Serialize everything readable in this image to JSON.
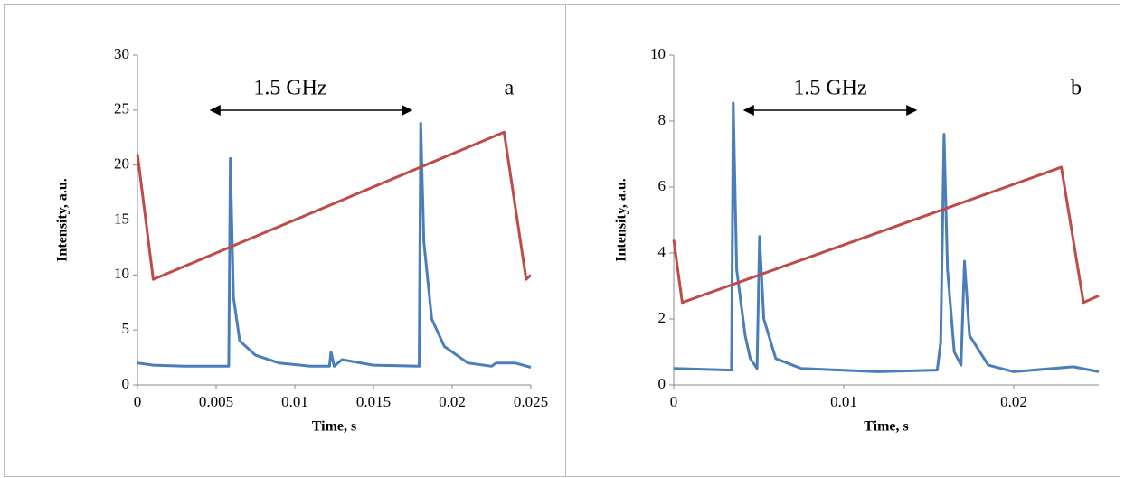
{
  "chart_data": [
    {
      "type": "line",
      "x_label": "Time, s",
      "y_label": "Intensity, a.u.",
      "xlim": [
        0,
        0.025
      ],
      "xticks": [
        0,
        0.005,
        0.01,
        0.015,
        0.02,
        0.025
      ],
      "ylim": [
        0,
        30
      ],
      "yticks": [
        0,
        5,
        10,
        15,
        20,
        25,
        30
      ],
      "annotations": [
        "1.5 GHz",
        "a"
      ],
      "series": [
        {
          "color": "#4a7ebb",
          "x": [
            0,
            0.001,
            0.003,
            0.0058,
            0.0059,
            0.0061,
            0.0065,
            0.0075,
            0.009,
            0.011,
            0.0122,
            0.0123,
            0.0125,
            0.013,
            0.015,
            0.0179,
            0.018,
            0.0182,
            0.0187,
            0.0195,
            0.021,
            0.0225,
            0.0228,
            0.024,
            0.025
          ],
          "values": [
            2,
            1.8,
            1.7,
            1.7,
            20.6,
            8,
            4,
            2.7,
            2,
            1.7,
            1.7,
            3,
            1.7,
            2.3,
            1.8,
            1.7,
            23.8,
            13,
            6,
            3.5,
            2,
            1.7,
            2,
            2,
            1.6
          ]
        },
        {
          "color": "#be4b48",
          "x": [
            0,
            0.001,
            0.0233,
            0.0247,
            0.025
          ],
          "values": [
            21,
            9.6,
            23,
            9.6,
            10
          ]
        }
      ]
    },
    {
      "type": "line",
      "x_label": "Time, s",
      "y_label": "Intensity, a.u.",
      "xlim": [
        0,
        0.025
      ],
      "xticks": [
        0,
        0.01,
        0.02
      ],
      "ylim": [
        0,
        10
      ],
      "yticks": [
        0,
        2,
        4,
        6,
        8,
        10
      ],
      "annotations": [
        "1.5 GHz",
        "b"
      ],
      "series": [
        {
          "color": "#4a7ebb",
          "x": [
            0,
            0.0034,
            0.0035,
            0.0037,
            0.0042,
            0.0045,
            0.0049,
            0.00505,
            0.0053,
            0.006,
            0.0075,
            0.012,
            0.0155,
            0.0157,
            0.0159,
            0.0161,
            0.0165,
            0.0169,
            0.0171,
            0.0174,
            0.0185,
            0.02,
            0.0235,
            0.025
          ],
          "values": [
            0.5,
            0.45,
            8.55,
            3.5,
            1.5,
            0.8,
            0.5,
            4.5,
            2,
            0.8,
            0.5,
            0.4,
            0.45,
            1.3,
            7.6,
            3.5,
            1,
            0.6,
            3.75,
            1.5,
            0.6,
            0.4,
            0.55,
            0.4
          ]
        },
        {
          "color": "#be4b48",
          "x": [
            0,
            0.0005,
            0.0228,
            0.0241,
            0.025
          ],
          "values": [
            4.4,
            2.5,
            6.6,
            2.5,
            2.7
          ]
        }
      ]
    }
  ]
}
